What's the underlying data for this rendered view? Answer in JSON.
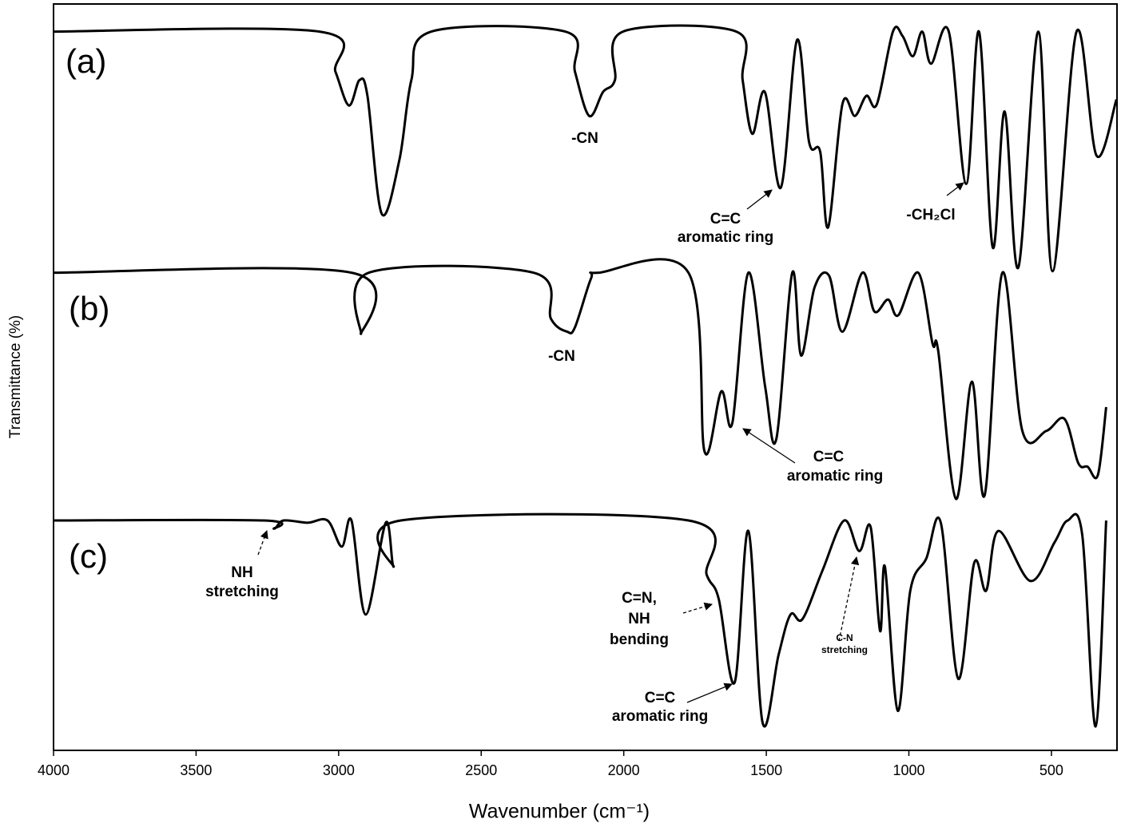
{
  "chart_data": {
    "type": "line",
    "xlabel": "Wavenumber (cm⁻¹)",
    "ylabel": "Transmittance (%)",
    "xlim": [
      4000,
      270
    ],
    "xticks": [
      4000,
      3500,
      3000,
      2500,
      2000,
      1500,
      1000,
      500
    ],
    "ylim": [
      0,
      100
    ],
    "series": [
      {
        "name": "(a)",
        "color": "#000000",
        "x": [
          4000,
          3067,
          3011,
          2964,
          2927,
          2899,
          2849,
          2787,
          2745,
          2675,
          2205,
          2171,
          2121,
          2073,
          2031,
          2003,
          1605,
          1583,
          1549,
          1505,
          1449,
          1392,
          1350,
          1311,
          1283,
          1233,
          1189,
          1149,
          1112,
          1056,
          1022,
          986,
          953,
          922,
          860,
          799,
          754,
          706,
          664,
          616,
          546,
          496,
          412,
          342,
          272
        ],
        "values": [
          96.3,
          96.3,
          90.9,
          86.4,
          89.8,
          87.7,
          71.9,
          79.1,
          89.8,
          96.3,
          96.3,
          90.9,
          85.0,
          88.2,
          89.8,
          96.3,
          96.3,
          89.8,
          82.6,
          88.2,
          75.4,
          95.2,
          81.5,
          80.2,
          70.1,
          86.6,
          85.0,
          87.7,
          86.6,
          96.3,
          95.7,
          93.0,
          96.3,
          92.0,
          96.3,
          75.9,
          96.3,
          67.4,
          85.6,
          64.7,
          96.3,
          64.2,
          96.3,
          79.7,
          87.2
        ]
      },
      {
        "name": "(b)",
        "color": "#000000",
        "x": [
          4000,
          2955,
          2922,
          2894,
          2317,
          2255,
          2199,
          2171,
          2115,
          2087,
          1773,
          1717,
          1658,
          1619,
          1563,
          1504,
          1465,
          1409,
          1378,
          1331,
          1280,
          1233,
          1163,
          1121,
          1073,
          1037,
          967,
          917,
          897,
          835,
          779,
          734,
          672,
          602,
          518,
          454,
          406,
          373,
          337,
          308
        ],
        "values": [
          64.0,
          64.0,
          55.8,
          64.0,
          64.0,
          57.8,
          56.1,
          56.7,
          63.2,
          64.0,
          64.0,
          40.1,
          48.1,
          43.9,
          64.0,
          48.7,
          41.7,
          64.0,
          52.9,
          62.0,
          63.6,
          56.1,
          64.0,
          58.8,
          60.4,
          58.3,
          64.0,
          54.5,
          53.5,
          33.7,
          49.4,
          34.2,
          64.0,
          42.8,
          42.8,
          44.4,
          38.5,
          38.0,
          36.9,
          46.0
        ]
      },
      {
        "name": "(c)",
        "color": "#000000",
        "x": [
          4000,
          3263,
          3227,
          3193,
          3109,
          3039,
          2989,
          2955,
          2905,
          2835,
          2807,
          2782,
          1773,
          1709,
          1667,
          1611,
          1563,
          1513,
          1457,
          1415,
          1373,
          1303,
          1227,
          1174,
          1134,
          1101,
          1084,
          1039,
          995,
          939,
          888,
          827,
          771,
          729,
          686,
          574,
          490,
          443,
          392,
          345,
          308
        ],
        "values": [
          30.8,
          30.8,
          29.7,
          30.8,
          30.5,
          30.8,
          27.3,
          30.8,
          18.2,
          30.5,
          24.6,
          30.8,
          30.8,
          23.5,
          20.3,
          9.1,
          29.4,
          3.7,
          12.8,
          18.2,
          17.6,
          24.1,
          30.8,
          26.7,
          29.9,
          16.0,
          24.6,
          5.3,
          21.4,
          25.7,
          30.5,
          9.6,
          25.1,
          21.4,
          29.4,
          22.7,
          27.8,
          30.8,
          28.9,
          3.2,
          30.8
        ]
      }
    ],
    "annotations": [
      [
        "-CN"
      ],
      [
        "C=C",
        "aromatic ring"
      ],
      [
        "-CH₂Cl"
      ],
      [
        "-CN"
      ],
      [
        "C=C",
        "aromatic ring"
      ],
      [
        "NH",
        "stretching"
      ],
      [
        "C=N,",
        "NH",
        "bending"
      ],
      [
        "C=C",
        "aromatic ring"
      ],
      [
        "C-N",
        "stretching"
      ]
    ]
  }
}
